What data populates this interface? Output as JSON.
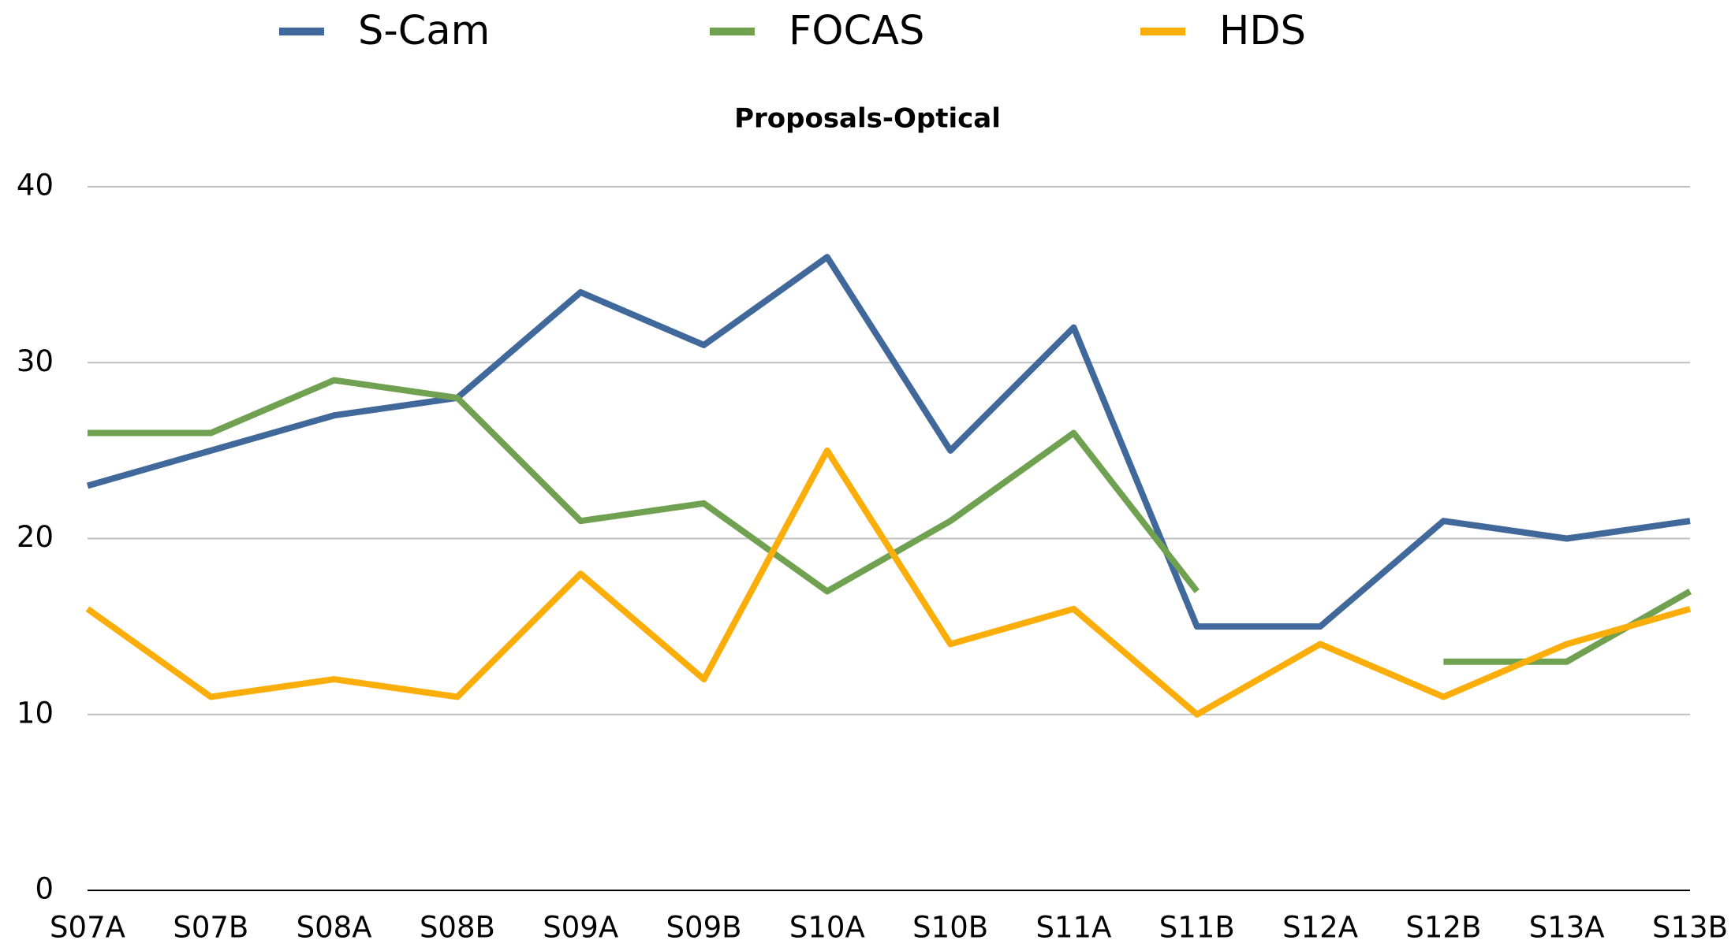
{
  "chart_data": {
    "type": "line",
    "title": "Proposals-Optical",
    "categories": [
      "S07A",
      "S07B",
      "S08A",
      "S08B",
      "S09A",
      "S09B",
      "S10A",
      "S10B",
      "S11A",
      "S11B",
      "S12A",
      "S12B",
      "S13A",
      "S13B"
    ],
    "series": [
      {
        "name": "S-Cam",
        "color": "#41689a",
        "values": [
          23,
          25,
          27,
          28,
          34,
          31,
          36,
          25,
          32,
          15,
          15,
          21,
          20,
          21
        ]
      },
      {
        "name": "FOCAS",
        "color": "#70a150",
        "values": [
          26,
          26,
          29,
          28,
          21,
          22,
          17,
          21,
          26,
          17,
          null,
          13,
          13,
          17
        ]
      },
      {
        "name": "HDS",
        "color": "#fbae0a",
        "values": [
          16,
          11,
          12,
          11,
          18,
          12,
          25,
          14,
          16,
          10,
          14,
          11,
          14,
          16
        ]
      }
    ],
    "ylim": [
      0,
      40
    ],
    "yticks": [
      0,
      10,
      20,
      30,
      40
    ],
    "grid": true,
    "legend": "top"
  }
}
